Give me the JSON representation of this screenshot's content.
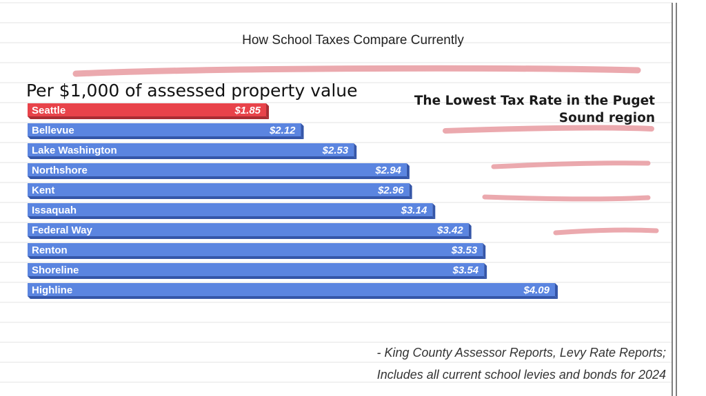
{
  "slide": {
    "title": "How School Taxes Compare Currently",
    "subtitle": "Per $1,000 of assessed property value",
    "callout_line1": "The Lowest Tax Rate in the Puget",
    "callout_line2": "Sound region",
    "source_line1": "- King County Assessor Reports, Levy Rate Reports;",
    "source_line2": "Includes all current school levies and bonds for 2024"
  },
  "colors": {
    "highlight": "#e8434a",
    "default": "#5b85e0",
    "highlight_shadow": "#a82d33",
    "default_shadow": "#3556a8",
    "marker_stroke": "#e89aa0",
    "rule_line": "#e3e3e3",
    "margin_line": "#555555"
  },
  "chart_data": {
    "type": "bar",
    "orientation": "horizontal",
    "categories": [
      "Seattle",
      "Bellevue",
      "Lake Washington",
      "Northshore",
      "Kent",
      "Issaquah",
      "Federal Way",
      "Renton",
      "Shoreline",
      "Highline"
    ],
    "values": [
      1.85,
      2.12,
      2.53,
      2.94,
      2.96,
      3.14,
      3.42,
      3.53,
      3.54,
      4.09
    ],
    "value_labels": [
      "$1.85",
      "$2.12",
      "$2.53",
      "$2.94",
      "$2.96",
      "$3.14",
      "$3.42",
      "$3.53",
      "$3.54",
      "$4.09"
    ],
    "highlighted": [
      "Seattle"
    ],
    "xlim": [
      0,
      4.09
    ],
    "grid": false,
    "legend": "none"
  }
}
